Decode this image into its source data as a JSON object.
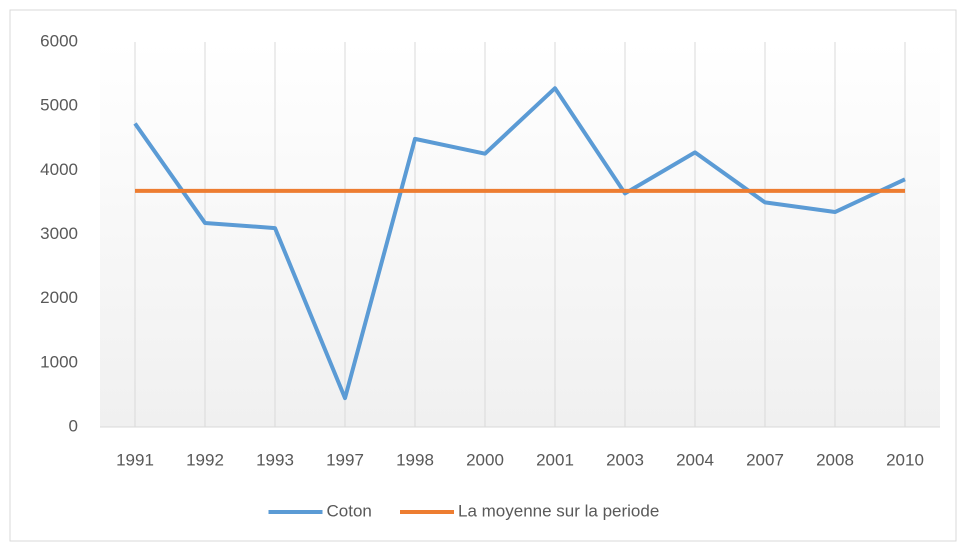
{
  "chart_data": {
    "type": "line",
    "categories": [
      "1991",
      "1992",
      "1993",
      "1997",
      "1998",
      "2000",
      "2001",
      "2003",
      "2004",
      "2007",
      "2008",
      "2010"
    ],
    "series": [
      {
        "name": "Coton",
        "color": "#5b9bd5",
        "values": [
          4730,
          3180,
          3100,
          450,
          4490,
          4260,
          5280,
          3640,
          4280,
          3500,
          3350,
          3860
        ]
      },
      {
        "name": "La moyenne sur la periode",
        "color": "#ed7d31",
        "values": [
          3680,
          3680,
          3680,
          3680,
          3680,
          3680,
          3680,
          3680,
          3680,
          3680,
          3680,
          3680
        ]
      }
    ],
    "ylim": [
      0,
      6000
    ],
    "yticks": [
      0,
      1000,
      2000,
      3000,
      4000,
      5000,
      6000
    ],
    "grid": "x",
    "legend": "bottom"
  }
}
